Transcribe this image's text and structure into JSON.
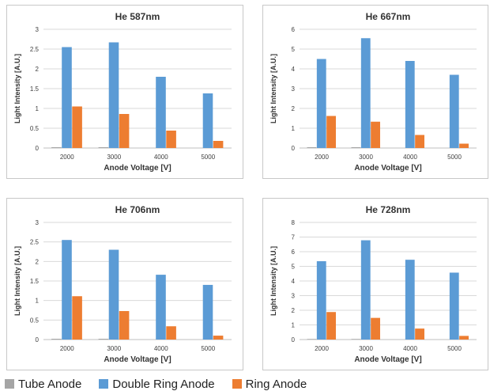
{
  "colors": {
    "tube": "#a5a5a5",
    "double_ring": "#5b9bd5",
    "ring": "#ed7d31",
    "grid": "#d9d9d9",
    "axis_text": "#404040"
  },
  "legend": {
    "items": [
      {
        "label": "Tube Anode",
        "color": "#a5a5a5"
      },
      {
        "label": "Double Ring Anode",
        "color": "#5b9bd5"
      },
      {
        "label": "Ring Anode",
        "color": "#ed7d31"
      }
    ],
    "placement": "bottom"
  },
  "chart_data": [
    {
      "type": "bar",
      "title": "He 587nm",
      "xlabel": "Anode Voltage [V]",
      "ylabel": "Light Intensity [A.U.]",
      "categories": [
        "2000",
        "3000",
        "4000",
        "5000"
      ],
      "ylim": [
        0,
        3
      ],
      "yticks": [
        0,
        0.5,
        1,
        1.5,
        2,
        2.5,
        3
      ],
      "ytick_labels": [
        "0",
        "0.5",
        "1",
        "1.5",
        "2",
        "2.5",
        "3"
      ],
      "grid": true,
      "series": [
        {
          "name": "Tube Anode",
          "values": [
            0.02,
            0.02,
            0.0,
            0.0
          ]
        },
        {
          "name": "Double Ring Anode",
          "values": [
            2.55,
            2.67,
            1.8,
            1.38
          ]
        },
        {
          "name": "Ring Anode",
          "values": [
            1.05,
            0.86,
            0.44,
            0.18
          ]
        }
      ]
    },
    {
      "type": "bar",
      "title": "He 667nm",
      "xlabel": "Anode Voltage [V]",
      "ylabel": "Light Intensity [A.U.]",
      "categories": [
        "2000",
        "3000",
        "4000",
        "5000"
      ],
      "ylim": [
        0,
        6
      ],
      "yticks": [
        0,
        1,
        2,
        3,
        4,
        5,
        6
      ],
      "ytick_labels": [
        "0",
        "1",
        "2",
        "3",
        "4",
        "5",
        "6"
      ],
      "grid": true,
      "series": [
        {
          "name": "Tube Anode",
          "values": [
            0.04,
            0.04,
            0.0,
            0.0
          ]
        },
        {
          "name": "Double Ring Anode",
          "values": [
            4.5,
            5.55,
            4.4,
            3.7
          ]
        },
        {
          "name": "Ring Anode",
          "values": [
            1.62,
            1.33,
            0.66,
            0.22
          ]
        }
      ]
    },
    {
      "type": "bar",
      "title": "He 706nm",
      "xlabel": "Anode Voltage [V]",
      "ylabel": "Light Intensity [A.U.]",
      "categories": [
        "2000",
        "3000",
        "4000",
        "5000"
      ],
      "ylim": [
        0,
        3
      ],
      "yticks": [
        0,
        0.5,
        1,
        1.5,
        2,
        2.5,
        3
      ],
      "ytick_labels": [
        "0",
        "0.5",
        "1",
        "1.5",
        "2",
        "2.5",
        "3"
      ],
      "grid": true,
      "series": [
        {
          "name": "Tube Anode",
          "values": [
            0.02,
            0.02,
            0.0,
            0.0
          ]
        },
        {
          "name": "Double Ring Anode",
          "values": [
            2.55,
            2.3,
            1.66,
            1.4
          ]
        },
        {
          "name": "Ring Anode",
          "values": [
            1.11,
            0.73,
            0.34,
            0.1
          ]
        }
      ]
    },
    {
      "type": "bar",
      "title": "He 728nm",
      "xlabel": "Anode Voltage [V]",
      "ylabel": "Light Intensity [A.U.]",
      "categories": [
        "2000",
        "3000",
        "4000",
        "5000"
      ],
      "ylim": [
        0,
        8
      ],
      "yticks": [
        0,
        1,
        2,
        3,
        4,
        5,
        6,
        7,
        8
      ],
      "ytick_labels": [
        "0",
        "1",
        "2",
        "3",
        "4",
        "5",
        "6",
        "7",
        "8"
      ],
      "grid": true,
      "series": [
        {
          "name": "Tube Anode",
          "values": [
            0.04,
            0.04,
            0.0,
            0.0
          ]
        },
        {
          "name": "Double Ring Anode",
          "values": [
            5.35,
            6.78,
            5.45,
            4.57
          ]
        },
        {
          "name": "Ring Anode",
          "values": [
            1.88,
            1.48,
            0.75,
            0.25
          ]
        }
      ]
    }
  ]
}
